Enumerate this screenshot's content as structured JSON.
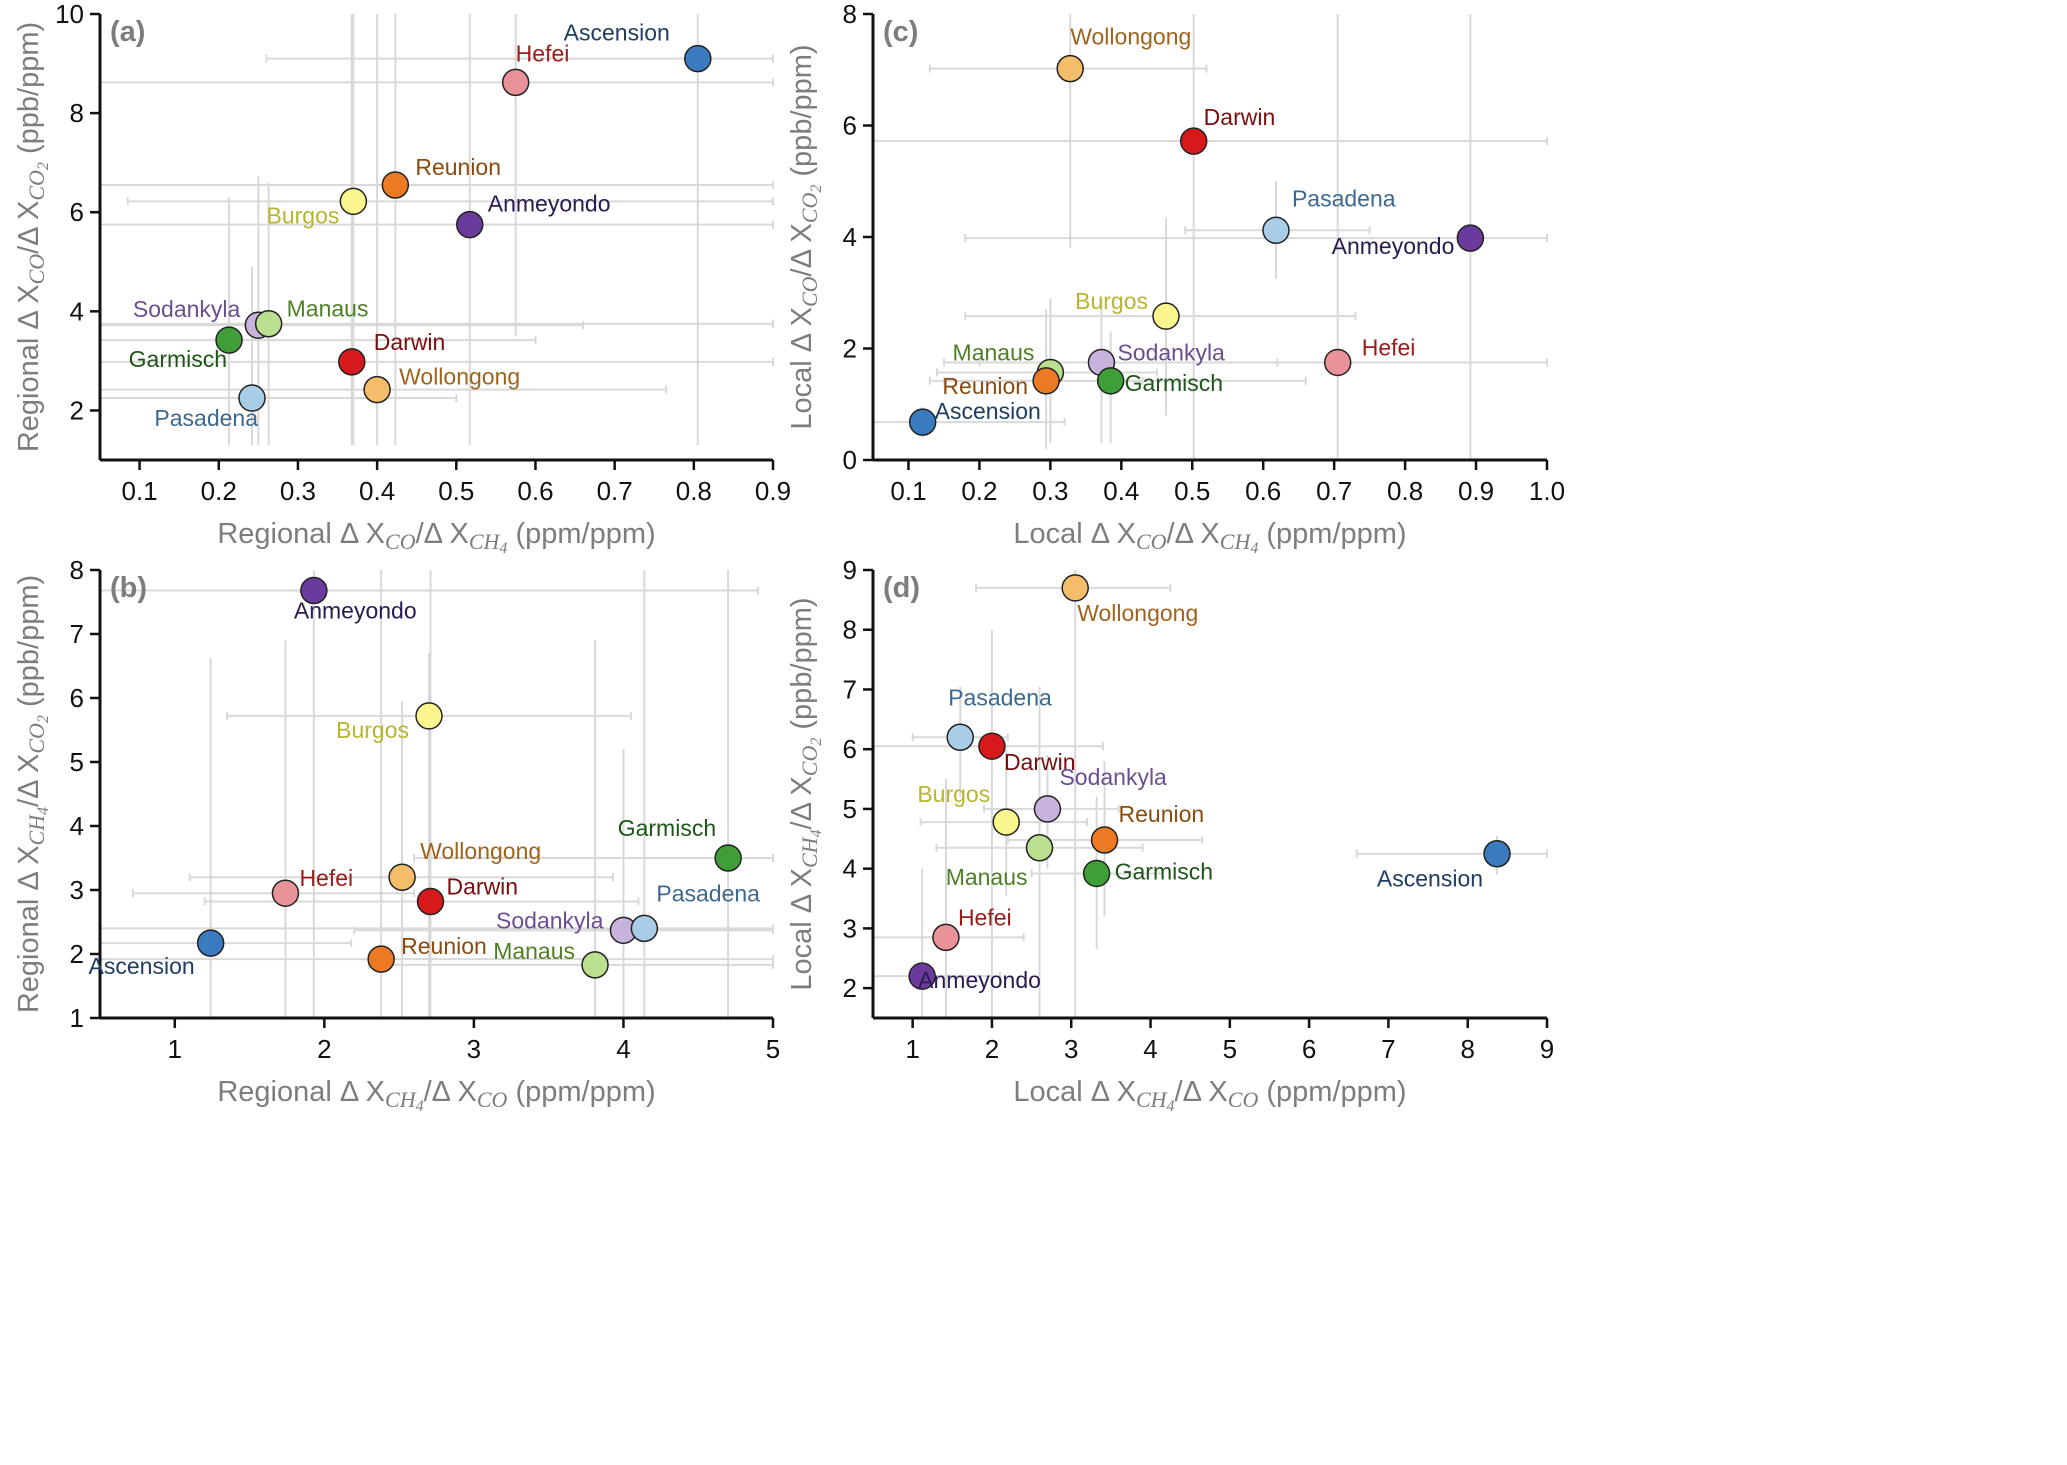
{
  "colors": {
    "Ascension": "#3a7bbf",
    "Hefei": "#e99297",
    "Reunion": "#ec7a24",
    "Burgos": "#fbf58d",
    "Anmeyondo": "#6a3b9c",
    "Sodankyla": "#c7b3dc",
    "Manaus": "#badf8f",
    "Garmisch": "#3f9e37",
    "Darwin": "#d7191c",
    "Wollongong": "#f4bd6a",
    "Pasadena": "#a9cde6"
  },
  "label_colors": {
    "Ascension": "#1f3d60",
    "Hefei": "#9b1a1a",
    "Reunion": "#8b4a0e",
    "Burgos": "#b7b52f",
    "Anmeyondo": "#2b1a50",
    "Sodankyla": "#6b4e90",
    "Manaus": "#4f7f25",
    "Garmisch": "#1e5518",
    "Darwin": "#7a0d0d",
    "Wollongong": "#a0631e",
    "Pasadena": "#3d6890"
  },
  "chart_data": [
    {
      "panel": "(a)",
      "type": "scatter",
      "xlabel_parts": [
        "Regional Δ X",
        "CO",
        "/Δ X",
        "CH",
        "4",
        " (ppm/ppm)"
      ],
      "ylabel_parts": [
        "Regional Δ X",
        "CO",
        "/Δ X",
        "CO",
        "2",
        " (ppb/ppm)"
      ],
      "xlim": [
        0.05,
        0.9
      ],
      "ylim": [
        1,
        10
      ],
      "xticks": [
        "0.1",
        "0.2",
        "0.3",
        "0.4",
        "0.5",
        "0.6",
        "0.7",
        "0.8",
        "0.9"
      ],
      "yticks": [
        "2",
        "4",
        "6",
        "8",
        "10"
      ],
      "points": [
        {
          "name": "Ascension",
          "x": 0.805,
          "y": 9.1,
          "xerr": [
            0.26,
            0.9
          ],
          "yerr": [
            1.3,
            10
          ]
        },
        {
          "name": "Hefei",
          "x": 0.575,
          "y": 8.62,
          "xerr": [
            0.05,
            0.9
          ],
          "yerr": [
            3.5,
            10
          ]
        },
        {
          "name": "Reunion",
          "x": 0.423,
          "y": 6.55,
          "xerr": [
            0.05,
            0.9
          ],
          "yerr": [
            1.3,
            10
          ]
        },
        {
          "name": "Burgos",
          "x": 0.37,
          "y": 6.22,
          "xerr": [
            0.085,
            0.9
          ],
          "yerr": [
            1.3,
            10
          ]
        },
        {
          "name": "Anmeyondo",
          "x": 0.517,
          "y": 5.75,
          "xerr": [
            0.05,
            0.9
          ],
          "yerr": [
            1.3,
            10
          ]
        },
        {
          "name": "Sodankyla",
          "x": 0.25,
          "y": 3.72,
          "xerr": [
            0.05,
            0.66
          ],
          "yerr": [
            1.3,
            6.72
          ]
        },
        {
          "name": "Manaus",
          "x": 0.263,
          "y": 3.75,
          "xerr": [
            0.05,
            0.9
          ],
          "yerr": [
            1.3,
            6.6
          ]
        },
        {
          "name": "Garmisch",
          "x": 0.213,
          "y": 3.42,
          "xerr": [
            0.05,
            0.6
          ],
          "yerr": [
            1.3,
            6.3
          ]
        },
        {
          "name": "Darwin",
          "x": 0.368,
          "y": 2.98,
          "xerr": [
            0.05,
            0.9
          ],
          "yerr": [
            1.3,
            10
          ]
        },
        {
          "name": "Wollongong",
          "x": 0.4,
          "y": 2.42,
          "xerr": [
            0.05,
            0.765
          ],
          "yerr": [
            1.3,
            10
          ]
        },
        {
          "name": "Pasadena",
          "x": 0.242,
          "y": 2.25,
          "xerr": [
            0.05,
            0.5
          ],
          "yerr": [
            1.3,
            4.9
          ]
        }
      ]
    },
    {
      "panel": "(b)",
      "type": "scatter",
      "xlabel_parts": [
        "Regional Δ X",
        "CH",
        "4",
        "/Δ X",
        "CO",
        "",
        " (ppm/ppm)"
      ],
      "ylabel_parts": [
        "Regional Δ X",
        "CH",
        "4",
        "/Δ X",
        "CO",
        "2",
        " (ppb/ppm)"
      ],
      "xlim": [
        0.5,
        5
      ],
      "ylim": [
        1,
        8
      ],
      "xticks": [
        "1",
        "2",
        "3",
        "4",
        "5"
      ],
      "yticks": [
        "1",
        "2",
        "3",
        "4",
        "5",
        "6",
        "7",
        "8"
      ],
      "points": [
        {
          "name": "Anmeyondo",
          "x": 1.93,
          "y": 7.68,
          "xerr": [
            0.5,
            4.9
          ],
          "yerr": [
            1,
            8
          ]
        },
        {
          "name": "Burgos",
          "x": 2.7,
          "y": 5.72,
          "xerr": [
            1.35,
            4.05
          ],
          "yerr": [
            1,
            6.7
          ]
        },
        {
          "name": "Garmisch",
          "x": 4.7,
          "y": 3.5,
          "xerr": [
            2.6,
            5
          ],
          "yerr": [
            1,
            8
          ]
        },
        {
          "name": "Wollongong",
          "x": 2.52,
          "y": 3.2,
          "xerr": [
            1.1,
            3.93
          ],
          "yerr": [
            1,
            5.95
          ]
        },
        {
          "name": "Hefei",
          "x": 1.74,
          "y": 2.95,
          "xerr": [
            0.72,
            2.6
          ],
          "yerr": [
            1,
            6.9
          ]
        },
        {
          "name": "Darwin",
          "x": 2.71,
          "y": 2.82,
          "xerr": [
            1.2,
            4.1
          ],
          "yerr": [
            1,
            8
          ]
        },
        {
          "name": "Ascension",
          "x": 1.24,
          "y": 2.17,
          "xerr": [
            0.5,
            2.18
          ],
          "yerr": [
            1,
            6.62
          ]
        },
        {
          "name": "Reunion",
          "x": 2.38,
          "y": 1.92,
          "xerr": [
            0.5,
            5
          ],
          "yerr": [
            1,
            8
          ]
        },
        {
          "name": "Sodankyla",
          "x": 4.0,
          "y": 2.37,
          "xerr": [
            2.2,
            5
          ],
          "yerr": [
            1,
            5.2
          ]
        },
        {
          "name": "Pasadena",
          "x": 4.14,
          "y": 2.4,
          "xerr": [
            0.5,
            5
          ],
          "yerr": [
            1,
            8
          ]
        },
        {
          "name": "Manaus",
          "x": 3.81,
          "y": 1.83,
          "xerr": [
            2.3,
            5
          ],
          "yerr": [
            1,
            6.9
          ]
        }
      ]
    },
    {
      "panel": "(c)",
      "type": "scatter",
      "xlabel_parts": [
        "Local Δ X",
        "CO",
        "/Δ X",
        "CH",
        "4",
        " (ppm/ppm)"
      ],
      "ylabel_parts": [
        "Local Δ X",
        "CO",
        "/Δ X",
        "CO",
        "2",
        " (ppb/ppm)"
      ],
      "xlim": [
        0.05,
        1.0
      ],
      "ylim": [
        0,
        8
      ],
      "xticks": [
        "0.1",
        "0.2",
        "0.3",
        "0.4",
        "0.5",
        "0.6",
        "0.7",
        "0.8",
        "0.9",
        "1.0"
      ],
      "yticks": [
        "0",
        "2",
        "4",
        "6",
        "8"
      ],
      "points": [
        {
          "name": "Wollongong",
          "x": 0.328,
          "y": 7.02,
          "xerr": [
            0.13,
            0.52
          ],
          "yerr": [
            3.8,
            8
          ]
        },
        {
          "name": "Darwin",
          "x": 0.502,
          "y": 5.72,
          "xerr": [
            0.05,
            1.0
          ],
          "yerr": [
            0,
            8
          ]
        },
        {
          "name": "Pasadena",
          "x": 0.618,
          "y": 4.12,
          "xerr": [
            0.49,
            0.75
          ],
          "yerr": [
            3.25,
            5.0
          ]
        },
        {
          "name": "Anmeyondo",
          "x": 0.892,
          "y": 3.98,
          "xerr": [
            0.18,
            1.0
          ],
          "yerr": [
            0,
            8
          ]
        },
        {
          "name": "Burgos",
          "x": 0.463,
          "y": 2.58,
          "xerr": [
            0.18,
            0.73
          ],
          "yerr": [
            0.8,
            4.35
          ]
        },
        {
          "name": "Hefei",
          "x": 0.705,
          "y": 1.75,
          "xerr": [
            0.2,
            1.0
          ],
          "yerr": [
            0,
            8
          ]
        },
        {
          "name": "Sodankyla",
          "x": 0.372,
          "y": 1.75,
          "xerr": [
            0.15,
            0.62
          ],
          "yerr": [
            0.3,
            2.9
          ]
        },
        {
          "name": "Manaus",
          "x": 0.3,
          "y": 1.57,
          "xerr": [
            0.14,
            0.45
          ],
          "yerr": [
            0.3,
            2.9
          ]
        },
        {
          "name": "Garmisch",
          "x": 0.385,
          "y": 1.42,
          "xerr": [
            0.15,
            0.66
          ],
          "yerr": [
            0.3,
            2.3
          ]
        },
        {
          "name": "Reunion",
          "x": 0.294,
          "y": 1.42,
          "xerr": [
            0.13,
            0.43
          ],
          "yerr": [
            0.2,
            2.7
          ]
        },
        {
          "name": "Ascension",
          "x": 0.12,
          "y": 0.68,
          "xerr": [
            0.05,
            0.32
          ],
          "yerr": [
            0.4,
            0.95
          ]
        }
      ]
    },
    {
      "panel": "(d)",
      "type": "scatter",
      "xlabel_parts": [
        "Local Δ X",
        "CH",
        "4",
        "/Δ X",
        "CO",
        "",
        " (ppm/ppm)"
      ],
      "ylabel_parts": [
        "Local Δ X",
        "CH",
        "4",
        "/Δ X",
        "CO",
        "2",
        " (ppb/ppm)"
      ],
      "xlim": [
        0.5,
        9
      ],
      "ylim": [
        1.5,
        9
      ],
      "xticks": [
        "1",
        "2",
        "3",
        "4",
        "5",
        "6",
        "7",
        "8",
        "9"
      ],
      "yticks": [
        "2",
        "3",
        "4",
        "5",
        "6",
        "7",
        "8",
        "9"
      ],
      "points": [
        {
          "name": "Wollongong",
          "x": 3.05,
          "y": 8.7,
          "xerr": [
            1.8,
            4.25
          ],
          "yerr": [
            1.5,
            9
          ]
        },
        {
          "name": "Pasadena",
          "x": 1.6,
          "y": 6.2,
          "xerr": [
            1.0,
            2.2
          ],
          "yerr": [
            5.2,
            7.05
          ]
        },
        {
          "name": "Darwin",
          "x": 2.0,
          "y": 6.05,
          "xerr": [
            0.5,
            3.4
          ],
          "yerr": [
            1.5,
            8.0
          ]
        },
        {
          "name": "Sodankyla",
          "x": 2.7,
          "y": 5.0,
          "xerr": [
            1.9,
            3.6
          ],
          "yerr": [
            4.0,
            5.9
          ]
        },
        {
          "name": "Burgos",
          "x": 2.18,
          "y": 4.78,
          "xerr": [
            1.1,
            3.2
          ],
          "yerr": [
            3.55,
            6.0
          ]
        },
        {
          "name": "Reunion",
          "x": 3.42,
          "y": 4.48,
          "xerr": [
            2.2,
            4.65
          ],
          "yerr": [
            3.2,
            5.8
          ]
        },
        {
          "name": "Manaus",
          "x": 2.6,
          "y": 4.35,
          "xerr": [
            1.3,
            3.9
          ],
          "yerr": [
            1.5,
            7.05
          ]
        },
        {
          "name": "Garmisch",
          "x": 3.32,
          "y": 3.92,
          "xerr": [
            2.5,
            4.15
          ],
          "yerr": [
            2.65,
            5.2
          ]
        },
        {
          "name": "Ascension",
          "x": 8.37,
          "y": 4.25,
          "xerr": [
            6.6,
            9.0
          ],
          "yerr": [
            3.9,
            4.55
          ]
        },
        {
          "name": "Hefei",
          "x": 1.42,
          "y": 2.85,
          "xerr": [
            0.5,
            2.4
          ],
          "yerr": [
            1.5,
            5.5
          ]
        },
        {
          "name": "Anmeyondo",
          "x": 1.12,
          "y": 2.2,
          "xerr": [
            0.5,
            2.1
          ],
          "yerr": [
            1.5,
            4.0
          ]
        }
      ]
    }
  ]
}
